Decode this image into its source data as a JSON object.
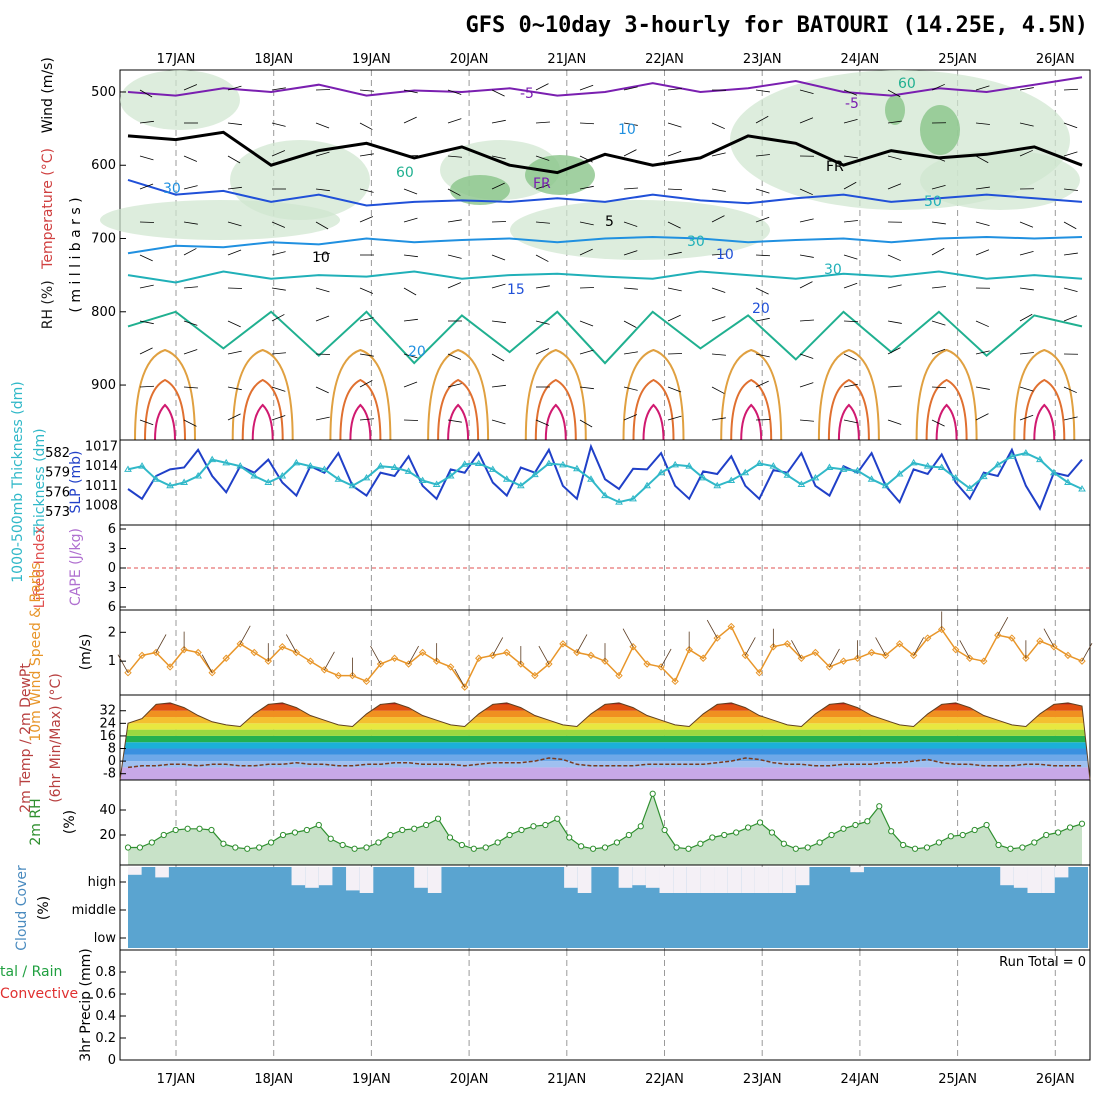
{
  "title": "GFS 0~10day 3-hourly for BATOURI (14.25E, 4.5N)",
  "colors": {
    "cloud": "#5aa4d0",
    "cloud_clear": "#f4f0f6",
    "rh_fill": "#c8e2c8",
    "rh_line": "#2f8f2f",
    "wind_speed": "#e8962a",
    "slp": "#2040c8",
    "thickness": "#30b8c8",
    "purple": "#7a1fb0",
    "frz": "#000000"
  },
  "chart_data": [
    {
      "type": "contour",
      "panel": "upper-air",
      "ylabel_parts": [
        {
          "text": "RH (%)",
          "color": "#1a1a1a"
        },
        {
          "text": "Temperature (°C)",
          "color": "#d04040"
        },
        {
          "text": "Wind (m/s)",
          "color": "#000000"
        }
      ],
      "ylabel2": "( m i l l i b a r s )",
      "yticks": [
        "500",
        "600",
        "700",
        "800",
        "900"
      ],
      "contour_labels": [
        "-5",
        "-5",
        "FR",
        "FR",
        "5",
        "10",
        "10",
        "15",
        "20",
        "20",
        "10",
        "30",
        "30",
        "30",
        "50",
        "60",
        "60"
      ],
      "levels": [
        {
          "label": "-5",
          "p": [
            500,
            505,
            495,
            500,
            490,
            505,
            498,
            500,
            495,
            505,
            500,
            488,
            500,
            495,
            485,
            500,
            505,
            495,
            500,
            490,
            480
          ]
        },
        {
          "label": "FR",
          "p": [
            560,
            565,
            555,
            600,
            580,
            570,
            590,
            575,
            600,
            610,
            585,
            600,
            590,
            560,
            570,
            600,
            580,
            590,
            585,
            575,
            600
          ]
        },
        {
          "label": "5",
          "p": [
            620,
            640,
            635,
            650,
            640,
            655,
            650,
            648,
            650,
            645,
            650,
            640,
            648,
            652,
            645,
            640,
            650,
            645,
            640,
            645,
            650
          ]
        },
        {
          "label": "10",
          "p": [
            720,
            710,
            712,
            705,
            708,
            700,
            705,
            702,
            700,
            705,
            700,
            698,
            700,
            705,
            702,
            700,
            705,
            700,
            698,
            700,
            698
          ]
        },
        {
          "label": "15",
          "p": [
            750,
            760,
            745,
            755,
            750,
            752,
            745,
            755,
            750,
            748,
            752,
            755,
            745,
            750,
            755,
            748,
            752,
            745,
            755,
            750,
            755
          ]
        },
        {
          "label": "20",
          "p": [
            820,
            800,
            850,
            800,
            860,
            800,
            870,
            805,
            855,
            800,
            870,
            800,
            850,
            805,
            865,
            800,
            855,
            800,
            860,
            805,
            820
          ]
        }
      ]
    },
    {
      "type": "line",
      "panel": "pressure",
      "ylabel": "SLP (mb)",
      "y2label": "Thickness (dm)",
      "y2label_full": "1000-500mb Thickness (dm)",
      "yticks": [
        "1017",
        "1014",
        "1011",
        "1008"
      ],
      "y2ticks": [
        "582",
        "579",
        "576",
        "573"
      ],
      "series": [
        {
          "name": "SLP",
          "values": [
            1010.5,
            1009,
            1012.5,
            1013.5,
            1013.8,
            1016.5,
            1012.5,
            1010,
            1014,
            1013,
            1015,
            1011.5,
            1009.5,
            1014,
            1013,
            1016,
            1011,
            1009.5,
            1013,
            1012.5,
            1015.5,
            1011,
            1009,
            1013.5,
            1013,
            1016,
            1011.5,
            1009.5,
            1013.8,
            1013,
            1016.5,
            1011,
            1009,
            1017,
            1012,
            1010.5,
            1013.6,
            1013.5,
            1016,
            1011,
            1009,
            1013.2,
            1012.8,
            1015.5,
            1011,
            1009,
            1013.4,
            1013,
            1016,
            1011,
            1009.5,
            1014,
            1013,
            1016,
            1011,
            1008.5,
            1013.5,
            1012.8,
            1015.8,
            1011.5,
            1009,
            1013,
            1012.5,
            1016.5,
            1011,
            1007.5,
            1013,
            1012.5,
            1015
          ]
        },
        {
          "name": "Thickness",
          "values": [
            579.5,
            580,
            578,
            577,
            577.5,
            578.5,
            581,
            580.5,
            580,
            578.5,
            577.5,
            578.5,
            580.5,
            580,
            579.5,
            578,
            577,
            578.2,
            580,
            579.8,
            579.2,
            577.8,
            577.2,
            578.5,
            580.3,
            580.4,
            579.5,
            578,
            577,
            578.7,
            580.4,
            580.2,
            579.6,
            578,
            575.5,
            574.5,
            575,
            577,
            579,
            580.2,
            580,
            578.2,
            577,
            577.8,
            579,
            580.4,
            580,
            578.6,
            577.2,
            578.2,
            579.8,
            579.5,
            579.3,
            578,
            577,
            578.8,
            580.5,
            580,
            579.8,
            578.2,
            576.6,
            578.4,
            580.2,
            581.5,
            582,
            581,
            579,
            577.5,
            576.5
          ]
        }
      ]
    },
    {
      "type": "line",
      "panel": "stability",
      "ylabel": "Lifted Index",
      "y2label": "CAPE (J/kg)",
      "yticks": [
        "6",
        "3",
        "0",
        "3",
        "6"
      ]
    },
    {
      "type": "line",
      "panel": "wind",
      "ylabel": "10m Wind Speed & Barbs",
      "yunit": "(m/s)",
      "yticks": [
        "2",
        "1"
      ],
      "series": [
        {
          "name": "10m Wind Speed",
          "values": [
            0.6,
            1.2,
            1.3,
            0.8,
            1.4,
            1.3,
            0.6,
            1.1,
            1.6,
            1.3,
            1.0,
            1.5,
            1.3,
            1.0,
            0.7,
            0.5,
            0.5,
            0.3,
            0.9,
            1.1,
            0.9,
            1.3,
            1.0,
            0.8,
            0.1,
            1.1,
            1.2,
            1.3,
            0.9,
            0.5,
            0.9,
            1.6,
            1.3,
            1.2,
            1.0,
            0.5,
            1.5,
            0.9,
            0.8,
            0.3,
            1.4,
            1.1,
            1.8,
            2.2,
            1.2,
            0.6,
            1.5,
            1.6,
            1.1,
            1.3,
            0.8,
            1.0,
            1.1,
            1.3,
            1.2,
            1.6,
            1.2,
            1.8,
            2.1,
            1.4,
            1.1,
            1.0,
            1.9,
            1.8,
            1.1,
            1.7,
            1.5,
            1.2,
            1.0
          ]
        }
      ]
    },
    {
      "type": "area",
      "panel": "temperature",
      "ylabel": "2m Temp / 2m DewPt",
      "ylabel2": "(6hr Min/Max) (°C)",
      "yticks": [
        "32",
        "24",
        "16",
        "8",
        "0",
        "-8"
      ],
      "series": [
        {
          "name": "2m Temp",
          "values": [
            24,
            27,
            36,
            37,
            34,
            29,
            25,
            23,
            22,
            30,
            36,
            37,
            34,
            29,
            26,
            23,
            22,
            30,
            36,
            37,
            34,
            29,
            26,
            23,
            22,
            30,
            36,
            37,
            34,
            29,
            26,
            23,
            22,
            30,
            36,
            37,
            34,
            29,
            26,
            23,
            22,
            30,
            36,
            37,
            34,
            29,
            26,
            23,
            22,
            30,
            36,
            37,
            34,
            29,
            26,
            23,
            22,
            30,
            36,
            37,
            34,
            29,
            26,
            23,
            22,
            30,
            36,
            37,
            35
          ]
        },
        {
          "name": "2m DewPt",
          "values": [
            -4,
            -3,
            -3,
            -2,
            -2,
            -3,
            -2,
            -2,
            -3,
            -3,
            -2,
            -2,
            -1,
            -2,
            -2,
            -3,
            -3,
            -2,
            -2,
            -1,
            -1,
            -2,
            -2,
            -2,
            -3,
            -2,
            -1,
            -1,
            -1,
            0,
            2,
            1,
            -2,
            -3,
            -3,
            -3,
            -3,
            -2,
            -2,
            -2,
            -2,
            -2,
            -1,
            0,
            2,
            1,
            -1,
            -2,
            -2,
            -3,
            -3,
            -2,
            -2,
            -2,
            -1,
            -1,
            0,
            1,
            -1,
            -2,
            -2,
            -3,
            -3,
            -3,
            -2,
            -2,
            -3,
            -3,
            -3
          ]
        }
      ]
    },
    {
      "type": "area",
      "panel": "rh",
      "ylabel": "2m RH",
      "yunit": "(%)",
      "yticks": [
        "40",
        "20"
      ],
      "series": [
        {
          "name": "2m RH",
          "values": [
            10,
            10,
            14,
            20,
            24,
            25,
            25,
            24,
            13,
            10,
            9,
            10,
            14,
            20,
            22,
            24,
            28,
            17,
            12,
            9,
            10,
            14,
            20,
            24,
            25,
            28,
            33,
            18,
            12,
            9,
            10,
            14,
            20,
            24,
            27,
            28,
            33,
            18,
            11,
            9,
            10,
            14,
            20,
            27,
            53,
            24,
            10,
            9,
            13,
            18,
            20,
            22,
            26,
            30,
            22,
            13,
            9,
            10,
            14,
            20,
            25,
            28,
            31,
            43,
            23,
            12,
            9,
            10,
            14,
            19,
            20,
            24,
            28,
            12,
            9,
            10,
            14,
            20,
            22,
            26,
            29
          ]
        }
      ]
    },
    {
      "type": "bar",
      "panel": "cloud",
      "ylabel": "Cloud Cover",
      "yunit": "(%)",
      "yticks": [
        "high",
        "middle",
        "low"
      ],
      "series": [
        {
          "name": "high",
          "values": [
            70,
            100,
            60,
            100,
            100,
            100,
            100,
            100,
            100,
            100,
            100,
            100,
            30,
            20,
            30,
            100,
            10,
            0,
            100,
            100,
            100,
            20,
            0,
            100,
            100,
            100,
            100,
            100,
            100,
            100,
            100,
            100,
            20,
            0,
            100,
            100,
            20,
            30,
            20,
            0,
            0,
            0,
            0,
            0,
            0,
            0,
            0,
            0,
            0,
            30,
            100,
            100,
            100,
            80,
            100,
            100,
            100,
            100,
            100,
            100,
            100,
            100,
            100,
            100,
            30,
            20,
            0,
            0,
            60,
            100
          ]
        }
      ]
    },
    {
      "type": "bar",
      "panel": "precip",
      "ylabel": "3hr Precip (mm)",
      "ylabel_left1": "tal / Rain",
      "ylabel_left2": "Convective",
      "run_total": "Run Total = 0",
      "yticks": [
        "0.8",
        "0.6",
        "0.4",
        "0.2",
        "0"
      ],
      "values": []
    }
  ],
  "xaxis": {
    "dates": [
      "17JAN",
      "18JAN",
      "19JAN",
      "20JAN",
      "21JAN",
      "22JAN",
      "23JAN",
      "24JAN",
      "25JAN",
      "26JAN"
    ]
  }
}
